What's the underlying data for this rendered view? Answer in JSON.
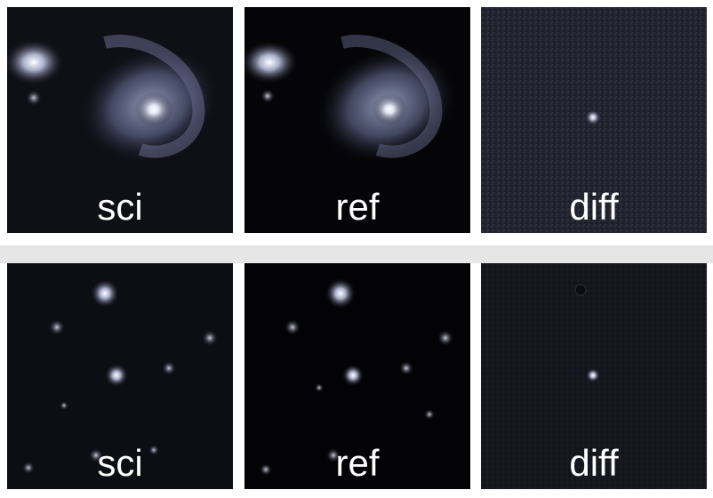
{
  "rows": [
    {
      "subject": "galaxy",
      "panels": [
        {
          "label": "sci"
        },
        {
          "label": "ref"
        },
        {
          "label": "diff"
        }
      ]
    },
    {
      "subject": "star-field",
      "panels": [
        {
          "label": "sci"
        },
        {
          "label": "ref"
        },
        {
          "label": "diff"
        }
      ]
    }
  ]
}
